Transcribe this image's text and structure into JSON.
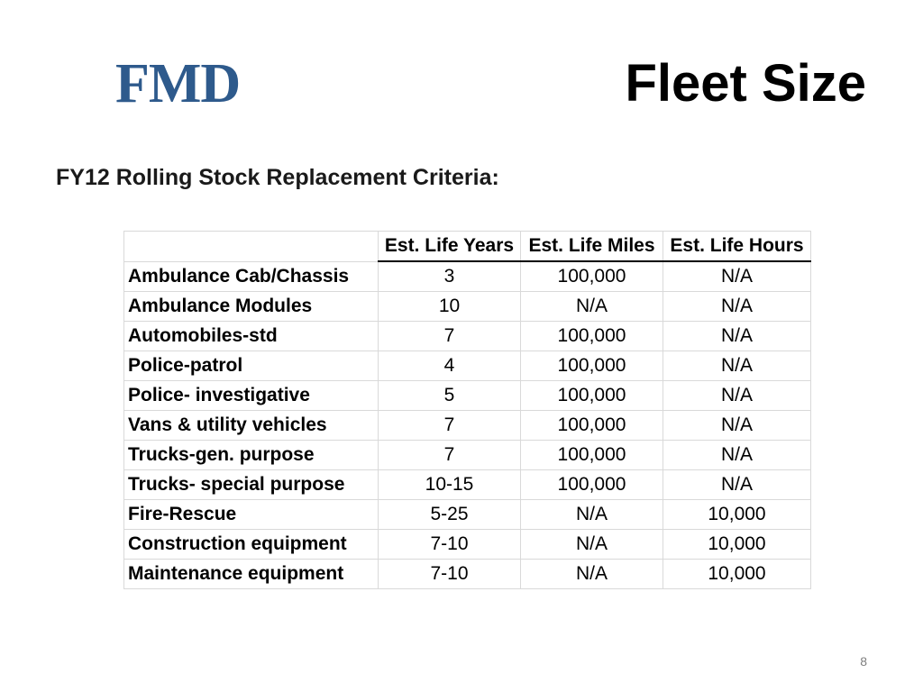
{
  "header": {
    "logo": "FMD",
    "title": "Fleet Size"
  },
  "subtitle": "FY12 Rolling Stock Replacement Criteria:",
  "table": {
    "columns": [
      "",
      "Est. Life Years",
      "Est. Life Miles",
      "Est. Life Hours"
    ],
    "rows": [
      [
        "Ambulance Cab/Chassis",
        "3",
        "100,000",
        "N/A"
      ],
      [
        "Ambulance Modules",
        "10",
        "N/A",
        "N/A"
      ],
      [
        "Automobiles-std",
        "7",
        "100,000",
        "N/A"
      ],
      [
        "Police-patrol",
        "4",
        "100,000",
        "N/A"
      ],
      [
        "Police- investigative",
        "5",
        "100,000",
        "N/A"
      ],
      [
        "Vans & utility vehicles",
        "7",
        "100,000",
        "N/A"
      ],
      [
        "Trucks-gen. purpose",
        "7",
        "100,000",
        "N/A"
      ],
      [
        "Trucks- special purpose",
        "10-15",
        "100,000",
        "N/A"
      ],
      [
        "Fire-Rescue",
        "5-25",
        "N/A",
        "10,000"
      ],
      [
        "Construction equipment",
        "7-10",
        "N/A",
        "10,000"
      ],
      [
        "Maintenance equipment",
        "7-10",
        "N/A",
        "10,000"
      ]
    ]
  },
  "page_number": "8"
}
